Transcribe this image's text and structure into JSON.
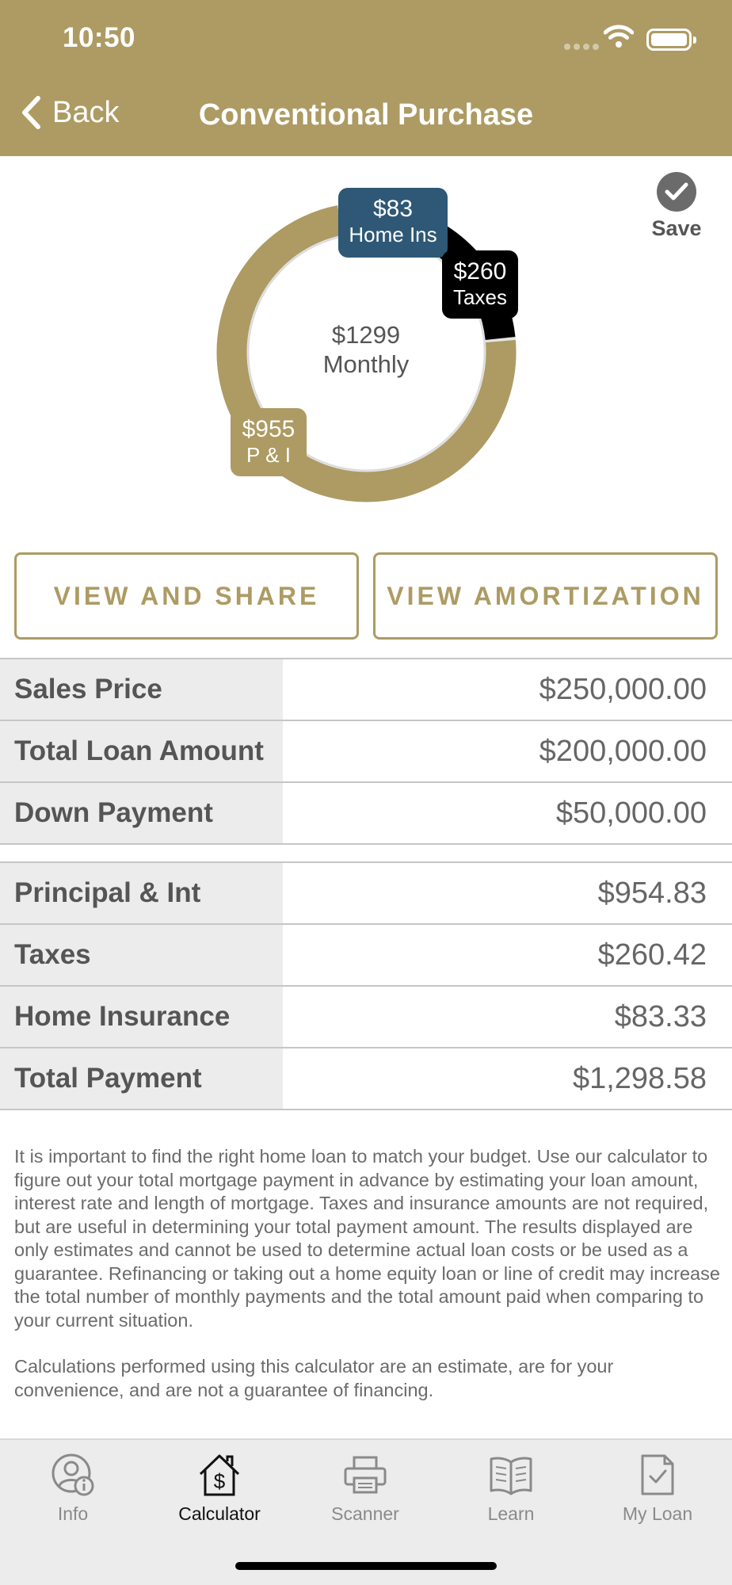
{
  "status_bar": {
    "time": "10:50"
  },
  "nav": {
    "back_label": "Back",
    "title": "Conventional Purchase"
  },
  "save": {
    "label": "Save"
  },
  "chart_data": {
    "type": "pie",
    "center_value": "$1299",
    "center_label": "Monthly",
    "slices": [
      {
        "name": "P & I",
        "value": 954.83,
        "display": "$955",
        "color": "#ad9b63"
      },
      {
        "name": "Taxes",
        "value": 260.42,
        "display": "$260",
        "color": "#000000"
      },
      {
        "name": "Home Ins",
        "value": 83.33,
        "display": "$83",
        "color": "#2e5875"
      }
    ]
  },
  "buttons": {
    "view_share": "VIEW AND SHARE",
    "view_amortization": "VIEW AMORTIZATION"
  },
  "loan_table": [
    {
      "label": "Sales Price",
      "value": "$250,000.00"
    },
    {
      "label": "Total Loan Amount",
      "value": "$200,000.00"
    },
    {
      "label": "Down Payment",
      "value": "$50,000.00"
    }
  ],
  "payment_table": [
    {
      "label": "Principal & Int",
      "value": "$954.83"
    },
    {
      "label": "Taxes",
      "value": "$260.42"
    },
    {
      "label": "Home Insurance",
      "value": "$83.33"
    },
    {
      "label": "Total Payment",
      "value": "$1,298.58"
    }
  ],
  "disclaimer": {
    "p1": "It is important to find the right home loan to match your budget. Use our calculator to figure out your total mortgage payment in advance by estimating your loan amount, interest rate and length of mortgage. Taxes and insurance amounts are not required, but are useful in determining your total payment amount.  The results displayed are only estimates and cannot be used to determine actual loan costs or be used as a guarantee. Refinancing or taking out a home equity loan or line of credit may increase the total number of monthly payments and the total amount paid when comparing to your current situation.",
    "p2": "Calculations performed using this calculator are an estimate, are for your convenience, and are not a guarantee of financing."
  },
  "tabs": [
    {
      "label": "Info",
      "icon": "person-info-icon",
      "active": false
    },
    {
      "label": "Calculator",
      "icon": "house-dollar-icon",
      "active": true
    },
    {
      "label": "Scanner",
      "icon": "printer-icon",
      "active": false
    },
    {
      "label": "Learn",
      "icon": "book-icon",
      "active": false
    },
    {
      "label": "My Loan",
      "icon": "document-check-icon",
      "active": false
    }
  ]
}
